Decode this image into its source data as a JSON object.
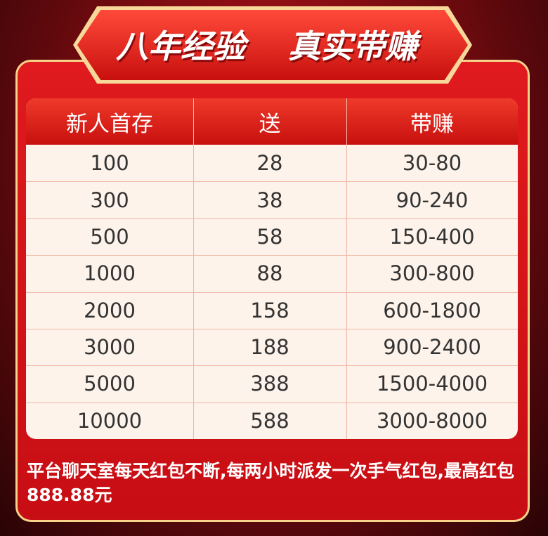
{
  "banner": {
    "title_left": "八年经验",
    "title_right": "真实带赚"
  },
  "table": {
    "header": [
      "新人首存",
      "送",
      "带赚"
    ],
    "rows": [
      [
        100,
        28,
        "30-80"
      ],
      [
        300,
        38,
        "90-240"
      ],
      [
        500,
        58,
        "150-400"
      ],
      [
        1000,
        88,
        "300-800"
      ],
      [
        2000,
        158,
        "600-1800"
      ],
      [
        3000,
        188,
        "900-2400"
      ],
      [
        5000,
        388,
        "1500-4000"
      ],
      [
        10000,
        588,
        "3000-8000"
      ]
    ]
  },
  "footer": {
    "text": "平台聊天室每天红包不断,每两小时派发一次手气红包,最高红包888.88元"
  }
}
